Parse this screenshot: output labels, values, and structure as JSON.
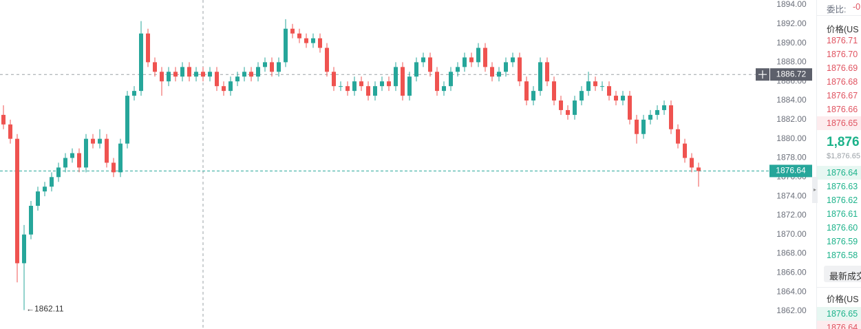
{
  "chart_data": {
    "type": "candlestick",
    "ylim": [
      1860.13,
      1894.5
    ],
    "yticks": [
      {
        "value": 1862,
        "label": "1862.00"
      },
      {
        "value": 1864,
        "label": "1864.00"
      },
      {
        "value": 1866,
        "label": "1866.00"
      },
      {
        "value": 1868,
        "label": "1868.00"
      },
      {
        "value": 1870,
        "label": "1870.00"
      },
      {
        "value": 1872,
        "label": "1872.00"
      },
      {
        "value": 1874,
        "label": "1874.00"
      },
      {
        "value": 1876,
        "label": "1876.00"
      },
      {
        "value": 1878,
        "label": "1878.00"
      },
      {
        "value": 1880,
        "label": "1880.00"
      },
      {
        "value": 1882,
        "label": "1882.00"
      },
      {
        "value": 1884,
        "label": "1884.00"
      },
      {
        "value": 1886,
        "label": "1886.00"
      },
      {
        "value": 1888,
        "label": "1888.00"
      },
      {
        "value": 1890,
        "label": "1890.00"
      },
      {
        "value": 1892,
        "label": "1892.00"
      },
      {
        "value": 1894,
        "label": "1894.00"
      }
    ],
    "up_color": "#26a69a",
    "down_color": "#ef5350",
    "crosshair_price": 1886.72,
    "last_price": 1876.64,
    "low_price": 1862.11,
    "candles": [
      [
        1882.5,
        1883.5,
        1881,
        1881.5
      ],
      [
        1881.5,
        1882,
        1879.5,
        1880
      ],
      [
        1880,
        1880.5,
        1865,
        1867
      ],
      [
        1867,
        1871,
        1862.11,
        1870
      ],
      [
        1870,
        1873.5,
        1869.5,
        1873
      ],
      [
        1873,
        1875,
        1872.5,
        1874.5
      ],
      [
        1874.5,
        1875.5,
        1874,
        1875
      ],
      [
        1875,
        1876.5,
        1874.5,
        1876
      ],
      [
        1876,
        1877.5,
        1875.5,
        1877
      ],
      [
        1877,
        1878.5,
        1876.5,
        1878
      ],
      [
        1878,
        1879,
        1877.5,
        1878.5
      ],
      [
        1878.5,
        1879,
        1876.5,
        1877
      ],
      [
        1877,
        1880.5,
        1876.5,
        1880
      ],
      [
        1880,
        1880.5,
        1879,
        1879.5
      ],
      [
        1879.5,
        1881,
        1879,
        1880
      ],
      [
        1880,
        1880.5,
        1877,
        1877.5
      ],
      [
        1877.5,
        1878,
        1876,
        1876.5
      ],
      [
        1876.5,
        1880,
        1876,
        1879.5
      ],
      [
        1879.5,
        1885,
        1879,
        1884.5
      ],
      [
        1884.5,
        1885.5,
        1884,
        1885
      ],
      [
        1885,
        1892.3,
        1884.5,
        1891
      ],
      [
        1891,
        1891.5,
        1887.5,
        1888
      ],
      [
        1888,
        1888.5,
        1886.5,
        1887
      ],
      [
        1887,
        1887.5,
        1884.5,
        1886
      ],
      [
        1886,
        1887.5,
        1885.5,
        1887
      ],
      [
        1887,
        1887.5,
        1886,
        1886.5
      ],
      [
        1886.5,
        1888,
        1886,
        1887.5
      ],
      [
        1887.5,
        1888,
        1886,
        1886.5
      ],
      [
        1886.5,
        1887.5,
        1886,
        1887
      ],
      [
        1887,
        1887.5,
        1886,
        1886.5
      ],
      [
        1886.5,
        1887.5,
        1886,
        1887
      ],
      [
        1887,
        1887.5,
        1885,
        1885.5
      ],
      [
        1885.5,
        1886,
        1884.5,
        1885
      ],
      [
        1885,
        1886.5,
        1884.5,
        1886
      ],
      [
        1886,
        1887,
        1885.5,
        1886.5
      ],
      [
        1886.5,
        1887.5,
        1886,
        1887
      ],
      [
        1887,
        1887.5,
        1886,
        1886.5
      ],
      [
        1886.5,
        1888,
        1886,
        1887.5
      ],
      [
        1887.5,
        1888.5,
        1887,
        1888
      ],
      [
        1888,
        1888.5,
        1886.5,
        1887
      ],
      [
        1887,
        1888.5,
        1886.5,
        1888
      ],
      [
        1888,
        1892.5,
        1887.5,
        1891.5
      ],
      [
        1891.5,
        1892,
        1890.5,
        1891
      ],
      [
        1891,
        1891.5,
        1890,
        1890.5
      ],
      [
        1890.5,
        1891,
        1889.5,
        1890
      ],
      [
        1890,
        1891,
        1889.5,
        1890.5
      ],
      [
        1890.5,
        1891,
        1889,
        1889.5
      ],
      [
        1889.5,
        1890,
        1886.5,
        1887
      ],
      [
        1887,
        1887.5,
        1885,
        1885.5
      ],
      [
        1885.5,
        1886,
        1885,
        1885.5
      ],
      [
        1885.5,
        1886,
        1884.5,
        1885
      ],
      [
        1885,
        1886.5,
        1884.5,
        1886
      ],
      [
        1886,
        1886.5,
        1885,
        1885.5
      ],
      [
        1885.5,
        1886,
        1884,
        1884.5
      ],
      [
        1884.5,
        1886,
        1884,
        1885.5
      ],
      [
        1885.5,
        1886.5,
        1885,
        1886
      ],
      [
        1886,
        1886.5,
        1885,
        1885.5
      ],
      [
        1885.5,
        1888,
        1885,
        1887.5
      ],
      [
        1887.5,
        1888,
        1884,
        1884.5
      ],
      [
        1884.5,
        1887,
        1884,
        1886.5
      ],
      [
        1886.5,
        1888.5,
        1886,
        1888
      ],
      [
        1888,
        1889,
        1887.5,
        1888.5
      ],
      [
        1888.5,
        1889,
        1886.5,
        1887
      ],
      [
        1887,
        1887.5,
        1884.5,
        1885
      ],
      [
        1885,
        1886,
        1884.5,
        1885.5
      ],
      [
        1885.5,
        1887.5,
        1885,
        1887
      ],
      [
        1887,
        1888,
        1886.5,
        1887.5
      ],
      [
        1887.5,
        1889,
        1887,
        1888.5
      ],
      [
        1888.5,
        1889,
        1887.5,
        1888
      ],
      [
        1888,
        1890,
        1887.5,
        1889.5
      ],
      [
        1889.5,
        1890,
        1887,
        1887.5
      ],
      [
        1887.5,
        1888,
        1886,
        1886.5
      ],
      [
        1886.5,
        1887.5,
        1886,
        1887
      ],
      [
        1887,
        1888.5,
        1886.5,
        1888
      ],
      [
        1888,
        1889,
        1887.5,
        1888.5
      ],
      [
        1888.5,
        1889,
        1885.5,
        1886
      ],
      [
        1886,
        1886.5,
        1883.5,
        1884
      ],
      [
        1884,
        1885.5,
        1883.5,
        1885
      ],
      [
        1885,
        1888.5,
        1884.5,
        1888
      ],
      [
        1888,
        1888.5,
        1885.5,
        1886
      ],
      [
        1886,
        1886.5,
        1883.5,
        1884
      ],
      [
        1884,
        1884.5,
        1882.5,
        1883
      ],
      [
        1883,
        1883.5,
        1882,
        1882.5
      ],
      [
        1882.5,
        1884.5,
        1882,
        1884
      ],
      [
        1884,
        1885.5,
        1883.5,
        1885
      ],
      [
        1885,
        1887,
        1884.5,
        1886
      ],
      [
        1886,
        1886.5,
        1885,
        1885.5
      ],
      [
        1885.5,
        1886,
        1885,
        1885.5
      ],
      [
        1885.5,
        1886,
        1884,
        1884.5
      ],
      [
        1884.5,
        1885,
        1883.5,
        1884
      ],
      [
        1884,
        1885,
        1883.5,
        1884.5
      ],
      [
        1884.5,
        1885,
        1881.5,
        1882
      ],
      [
        1882,
        1882.5,
        1879.5,
        1880.5
      ],
      [
        1880.5,
        1882.5,
        1880,
        1882
      ],
      [
        1882,
        1883,
        1881.5,
        1882.5
      ],
      [
        1882.5,
        1883.5,
        1882,
        1883
      ],
      [
        1883,
        1884,
        1882.5,
        1883.5
      ],
      [
        1883.5,
        1884,
        1880.5,
        1881
      ],
      [
        1881,
        1881.5,
        1879,
        1879.5
      ],
      [
        1879.5,
        1880,
        1877.5,
        1878
      ],
      [
        1878,
        1878.5,
        1876.5,
        1877
      ],
      [
        1877,
        1877.5,
        1875,
        1876.64
      ]
    ]
  },
  "order_book": {
    "ratio_label": "委比:",
    "ratio_value": "-0",
    "price_header": "价格(US",
    "asks": [
      "1876.71",
      "1876.70",
      "1876.69",
      "1876.68",
      "1876.67",
      "1876.66",
      "1876.65"
    ],
    "mid_price": "1,876",
    "mid_usd": "$1,876.65",
    "bids": [
      "1876.64",
      "1876.63",
      "1876.62",
      "1876.61",
      "1876.60",
      "1876.59",
      "1876.58"
    ],
    "trades_tab": "最新成交",
    "trades_header": "价格(US",
    "trades": [
      "1876.65",
      "1876.64"
    ]
  }
}
